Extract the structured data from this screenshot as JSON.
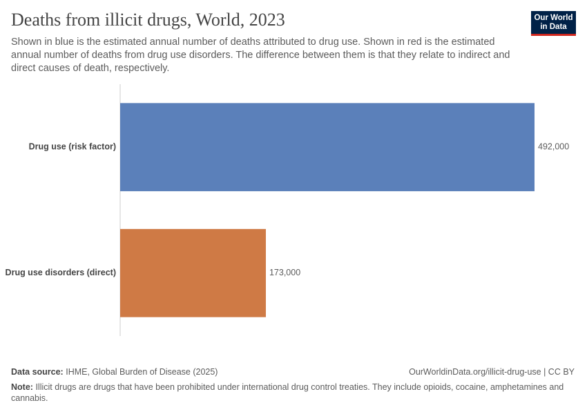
{
  "chart_data": {
    "type": "bar",
    "orientation": "horizontal",
    "title": "Deaths from illicit drugs, World, 2023",
    "subtitle": "Shown in blue is the estimated annual number of deaths attributed to drug use. Shown in red is the estimated annual number of deaths from drug use disorders. The difference between them is that they relate to indirect and direct causes of death, respectively.",
    "categories": [
      "Drug use (risk factor)",
      "Drug use disorders (direct)"
    ],
    "values": [
      492000,
      173000
    ],
    "value_labels": [
      "492,000",
      "173,000"
    ],
    "colors": [
      "#5b80ba",
      "#cf7a45"
    ],
    "xlim": [
      0,
      492000
    ]
  },
  "logo": [
    "Our World",
    "in Data"
  ],
  "footer": {
    "source_label": "Data source:",
    "source": "IHME, Global Burden of Disease (2025)",
    "url": "OurWorldinData.org/illicit-drug-use | CC BY",
    "note_label": "Note:",
    "note": "Illicit drugs are drugs that have been prohibited under international drug control treaties. They include opioids, cocaine, amphetamines and cannabis."
  }
}
